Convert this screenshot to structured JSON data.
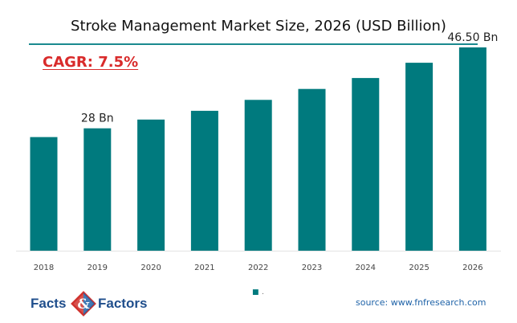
{
  "chart_data": {
    "type": "bar",
    "title": "Stroke Management Market Size, 2026 (USD Billion)",
    "annotation": "CAGR:  7.5%",
    "categories": [
      "2018",
      "2019",
      "2020",
      "2021",
      "2022",
      "2023",
      "2024",
      "2025",
      "2026"
    ],
    "values": [
      26.0,
      28.0,
      30.0,
      32.0,
      34.5,
      37.0,
      39.5,
      43.0,
      46.5
    ],
    "data_labels": {
      "1": "28 Bn",
      "8": "46.50 Bn"
    },
    "ylim": [
      0,
      50
    ],
    "xlabel": "",
    "ylabel": "",
    "grid": false,
    "legend": "bottom-center",
    "bar_color": "#007a7e",
    "series": [
      {
        "values": [
          26.0,
          28.0,
          30.0,
          32.0,
          34.5,
          37.0,
          39.5,
          43.0,
          46.5
        ]
      }
    ]
  },
  "legend_marker": "■",
  "legend_text": ".",
  "logo": {
    "left_word": "Facts",
    "right_word": "Factors",
    "mark_letter": "&"
  },
  "source": "source: www.fnfresearch.com",
  "colors": {
    "bar": "#007a7e",
    "title_rule": "#1a8a8f",
    "cagr": "#d92b2b",
    "logo_text": "#1f4e8c",
    "logo_mark_red": "#d0322e",
    "logo_mark_blue": "#1f63a8",
    "source_text": "#1f63a8"
  }
}
